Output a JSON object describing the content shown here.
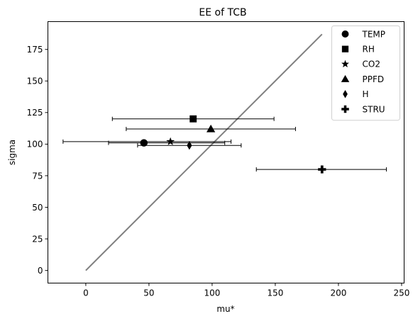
{
  "chart_data": {
    "type": "scatter",
    "title": "EE of TCB",
    "xlabel": "mu*",
    "ylabel": "sigma",
    "xlim": [
      -30,
      252
    ],
    "ylim": [
      -10,
      197
    ],
    "xticks": [
      0,
      50,
      100,
      150,
      200,
      250
    ],
    "yticks": [
      0,
      25,
      50,
      75,
      100,
      125,
      150,
      175
    ],
    "grid": false,
    "legend_position": "top-right",
    "line_color": "#808080",
    "reference_line": {
      "x": [
        0,
        187
      ],
      "y": [
        0,
        187
      ]
    },
    "series": [
      {
        "name": "TEMP",
        "marker": "circle",
        "x": 46,
        "y": 101,
        "xerr_low": 18,
        "xerr_high": 110
      },
      {
        "name": "RH",
        "marker": "square",
        "x": 85,
        "y": 120,
        "xerr_low": 21,
        "xerr_high": 149
      },
      {
        "name": "CO2",
        "marker": "star",
        "x": 67,
        "y": 102,
        "xerr_low": -18,
        "xerr_high": 115
      },
      {
        "name": "PPFD",
        "marker": "triangle",
        "x": 99,
        "y": 112,
        "xerr_low": 32,
        "xerr_high": 166
      },
      {
        "name": "H",
        "marker": "diamond",
        "x": 82,
        "y": 99,
        "xerr_low": 41,
        "xerr_high": 123
      },
      {
        "name": "STRU",
        "marker": "plus",
        "x": 187,
        "y": 80,
        "xerr_low": 135,
        "xerr_high": 238
      }
    ]
  }
}
